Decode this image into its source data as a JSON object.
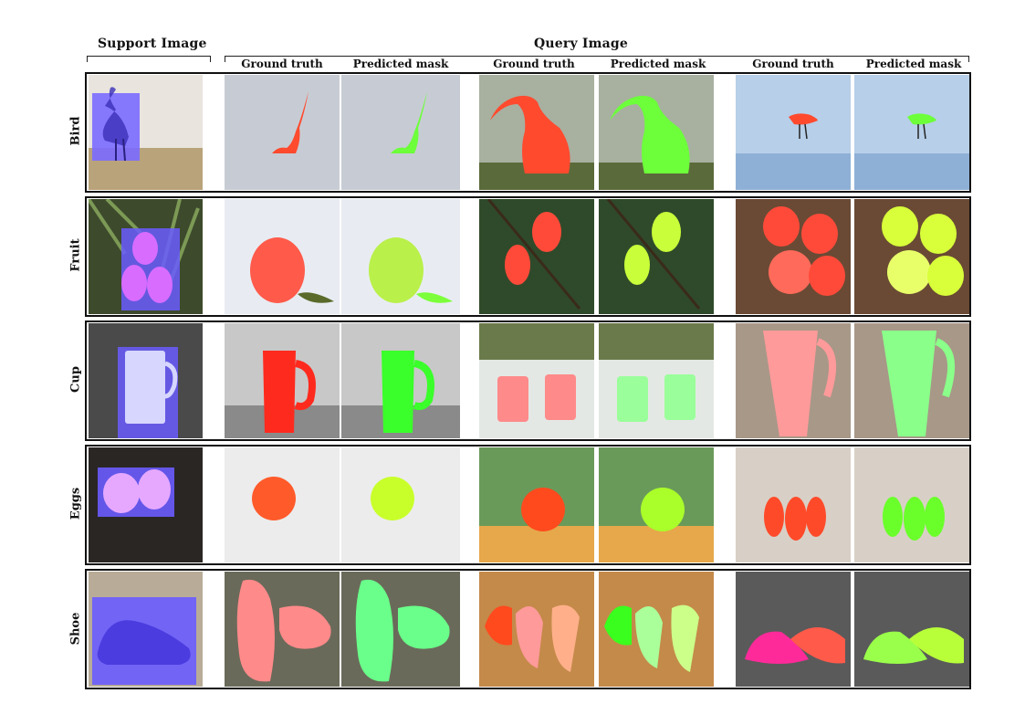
{
  "headers": {
    "support": "Support Image",
    "query": "Query Image",
    "columns": [
      "Ground truth",
      "Predicted mask",
      "Ground truth",
      "Predicted mask",
      "Ground truth",
      "Predicted mask"
    ]
  },
  "rows": [
    {
      "label": "Bird"
    },
    {
      "label": "Fruit"
    },
    {
      "label": "Cup"
    },
    {
      "label": "Eggs"
    },
    {
      "label": "Shoe"
    }
  ],
  "colors": {
    "support_mask": "#6a5cff",
    "ground_truth_mask": "#ff4a2e",
    "predicted_mask": "#6cff3a",
    "frame": "#111111"
  }
}
